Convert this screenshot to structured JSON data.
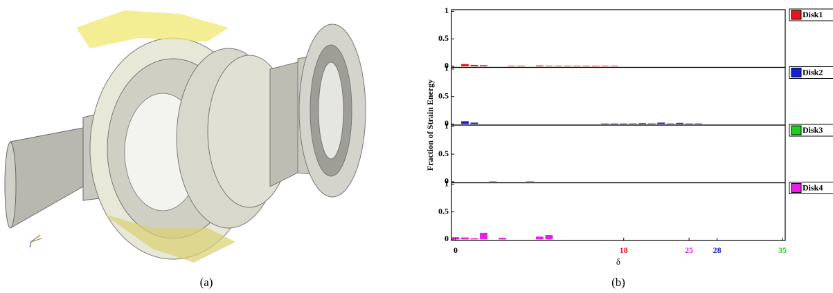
{
  "captions": [
    "(a)",
    "(b)"
  ],
  "ylabel": "Fraction of Strain Energy",
  "chart_data": [
    {
      "type": "bar",
      "name": "Disk1",
      "color": "#e8141c",
      "x": [
        1,
        2,
        3,
        6,
        7,
        9,
        10,
        11,
        12,
        13,
        14,
        15,
        16,
        17
      ],
      "values": [
        0.04,
        0.025,
        0.02,
        0.01,
        0.01,
        0.015,
        0.01,
        0.01,
        0.01,
        0.01,
        0.01,
        0.01,
        0.01,
        0.01
      ],
      "xlim": [
        0,
        35
      ],
      "ylim": [
        -0.02,
        1.03
      ],
      "yticks": [
        0,
        0.5,
        1
      ]
    },
    {
      "type": "bar",
      "name": "Disk2",
      "color": "#1420d0",
      "x": [
        1,
        2,
        16,
        17,
        18,
        19,
        20,
        21,
        22,
        23,
        24,
        25,
        26
      ],
      "values": [
        0.05,
        0.025,
        0.01,
        0.01,
        0.01,
        0.01,
        0.015,
        0.01,
        0.025,
        0.01,
        0.02,
        0.01,
        0.01
      ],
      "xlim": [
        0,
        35
      ],
      "ylim": [
        -0.02,
        1.03
      ],
      "yticks": [
        0,
        0.5,
        1
      ]
    },
    {
      "type": "bar",
      "name": "Disk3",
      "color": "#1ed01e",
      "x": [
        4,
        8
      ],
      "values": [
        0.01,
        0.01
      ],
      "xlim": [
        0,
        35
      ],
      "ylim": [
        -0.02,
        1.03
      ],
      "yticks": [
        0,
        0.5,
        1
      ]
    },
    {
      "type": "bar",
      "name": "Disk4",
      "color": "#e81ee8",
      "x": [
        0,
        1,
        2,
        3,
        5,
        9,
        10
      ],
      "values": [
        0.04,
        0.035,
        0.02,
        0.12,
        0.03,
        0.05,
        0.08
      ],
      "xlim": [
        0,
        35
      ],
      "ylim": [
        -0.02,
        1.03
      ],
      "yticks": [
        0,
        0.5,
        1
      ],
      "xlabel": "δ",
      "xticks": [
        0,
        18,
        25,
        28,
        35
      ],
      "xtick_colors": [
        "#000000",
        "#e8141c",
        "#e81ee8",
        "#1420d0",
        "#1ed01e"
      ]
    }
  ]
}
